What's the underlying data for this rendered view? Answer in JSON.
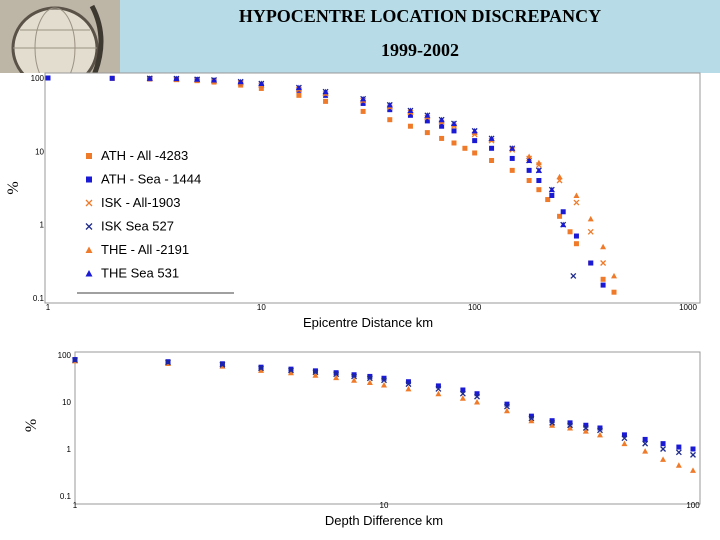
{
  "header": {
    "title": "HYPOCENTRE LOCATION DISCREPANCY",
    "subtitle": "1999-2002"
  },
  "colors": {
    "orange": "#ef7b2a",
    "blue": "#1a1ad4",
    "navy": "#1e2a8c",
    "header_bg": "#b7dce7"
  },
  "chart_data": [
    {
      "type": "scatter",
      "xlabel": "Epicentre Distance km",
      "ylabel": "%",
      "xscale": "log",
      "yscale": "log",
      "xlim": [
        1,
        1000
      ],
      "ylim": [
        0.1,
        100
      ],
      "x_ticks": [
        "1",
        "10",
        "100",
        "1000"
      ],
      "y_ticks": [
        "100",
        "10",
        "1",
        "0.1"
      ],
      "legend_position": "left-center",
      "series": [
        {
          "name": "ATH - All -4283",
          "marker": "square",
          "color": "#ef7b2a",
          "x": [
            1,
            2,
            3,
            4,
            5,
            6,
            8,
            10,
            15,
            20,
            30,
            40,
            50,
            60,
            70,
            80,
            90,
            100,
            120,
            150,
            180,
            200,
            220,
            250,
            280,
            300,
            350,
            400,
            450
          ],
          "y": [
            100,
            99,
            97,
            95,
            92,
            88,
            80,
            72,
            58,
            48,
            35,
            27,
            22,
            18,
            15,
            13,
            11,
            9.5,
            7.5,
            5.5,
            4,
            3,
            2.2,
            1.3,
            0.8,
            0.55,
            0.3,
            0.18,
            0.12
          ]
        },
        {
          "name": "ATH - Sea - 1444",
          "marker": "square",
          "color": "#1a1ad4",
          "x": [
            1,
            2,
            3,
            4,
            5,
            6,
            8,
            10,
            15,
            20,
            30,
            40,
            50,
            60,
            70,
            80,
            100,
            120,
            150,
            180,
            200,
            230,
            260,
            300,
            350,
            400
          ],
          "y": [
            100,
            99,
            98,
            97,
            95,
            92,
            86,
            80,
            68,
            58,
            45,
            37,
            31,
            26,
            22,
            19,
            14,
            11,
            8,
            5.5,
            4,
            2.5,
            1.5,
            0.7,
            0.3,
            0.15
          ]
        },
        {
          "name": "ISK - All-1903",
          "marker": "x",
          "color": "#ef7b2a",
          "x": [
            3,
            4,
            5,
            6,
            8,
            10,
            15,
            20,
            30,
            40,
            50,
            60,
            70,
            80,
            100,
            120,
            150,
            180,
            200,
            250,
            300,
            350,
            400
          ],
          "y": [
            98,
            96,
            94,
            91,
            86,
            80,
            70,
            61,
            49,
            40,
            34,
            29,
            25,
            22,
            17,
            14,
            10.5,
            8,
            6.5,
            4,
            2,
            0.8,
            0.3
          ]
        },
        {
          "name": "ISK   Sea 527",
          "marker": "x",
          "color": "#1e2a8c",
          "x": [
            3,
            4,
            5,
            6,
            8,
            10,
            15,
            20,
            30,
            40,
            50,
            60,
            70,
            80,
            100,
            120,
            150,
            180,
            200,
            230,
            260,
            290
          ],
          "y": [
            99,
            98,
            96,
            94,
            89,
            84,
            74,
            65,
            52,
            43,
            36,
            31,
            27,
            24,
            19,
            15,
            11,
            7.5,
            5.5,
            3,
            1,
            0.2
          ]
        },
        {
          "name": "THE - All -2191",
          "marker": "triangle",
          "color": "#ef7b2a",
          "x": [
            3,
            4,
            5,
            6,
            8,
            10,
            15,
            20,
            30,
            40,
            50,
            60,
            70,
            80,
            100,
            120,
            150,
            180,
            200,
            250,
            300,
            350,
            400,
            450
          ],
          "y": [
            98,
            96,
            94,
            91,
            86,
            80,
            71,
            62,
            50,
            41,
            35,
            30,
            26,
            23,
            18,
            14.5,
            11,
            8.5,
            7,
            4.5,
            2.5,
            1.2,
            0.5,
            0.2
          ]
        },
        {
          "name": "THE     Sea  531",
          "marker": "triangle",
          "color": "#1a1ad4",
          "x": [
            3,
            4,
            5,
            6,
            8,
            10,
            15,
            20,
            30,
            40,
            50,
            60,
            70,
            80,
            100,
            120,
            150,
            180,
            200,
            230,
            260
          ],
          "y": [
            99,
            98,
            96,
            94,
            89,
            84,
            74,
            65,
            52,
            43,
            36,
            31,
            27,
            24,
            19,
            15,
            11,
            7.5,
            5.5,
            3,
            1
          ]
        }
      ]
    },
    {
      "type": "scatter",
      "xlabel": "Depth Difference km",
      "ylabel": "%",
      "xscale": "log",
      "yscale": "log",
      "xlim": [
        1,
        100
      ],
      "ylim": [
        0.1,
        100
      ],
      "x_ticks": [
        "1",
        "10",
        "100"
      ],
      "y_ticks": [
        "100",
        "10",
        "1",
        "0.1"
      ],
      "series": [
        {
          "marker": "triangle",
          "color": "#ef7b2a",
          "x": [
            1,
            2,
            3,
            4,
            5,
            6,
            7,
            8,
            9,
            10,
            12,
            15,
            18,
            20,
            25,
            30,
            35,
            40,
            45,
            50,
            60,
            70,
            80,
            90,
            100
          ],
          "y": [
            75,
            66,
            58,
            47,
            42,
            37,
            33,
            29,
            26,
            23,
            19,
            15,
            12,
            10,
            6.5,
            4,
            3.2,
            2.8,
            2.4,
            2,
            1.3,
            0.9,
            0.6,
            0.45,
            0.35
          ]
        },
        {
          "marker": "square",
          "color": "#1a1ad4",
          "x": [
            1,
            2,
            3,
            4,
            5,
            6,
            7,
            8,
            9,
            10,
            12,
            15,
            18,
            20,
            25,
            30,
            35,
            40,
            45,
            50,
            60,
            70,
            80,
            90,
            100
          ],
          "y": [
            80,
            72,
            65,
            55,
            50,
            46,
            42,
            38,
            35,
            32,
            27,
            22,
            18,
            15,
            9,
            5,
            4,
            3.6,
            3.2,
            2.8,
            2,
            1.6,
            1.3,
            1.1,
            1
          ]
        },
        {
          "marker": "x",
          "color": "#1e2a8c",
          "x": [
            1,
            2,
            3,
            4,
            5,
            6,
            7,
            8,
            9,
            10,
            12,
            15,
            18,
            20,
            25,
            30,
            35,
            40,
            45,
            50,
            60,
            70,
            80,
            90,
            100
          ],
          "y": [
            78,
            70,
            62,
            52,
            47,
            43,
            39,
            35,
            32,
            29,
            24,
            19,
            15,
            13,
            8,
            4.5,
            3.6,
            3.2,
            2.8,
            2.5,
            1.7,
            1.3,
            1,
            0.85,
            0.75
          ]
        }
      ]
    }
  ]
}
